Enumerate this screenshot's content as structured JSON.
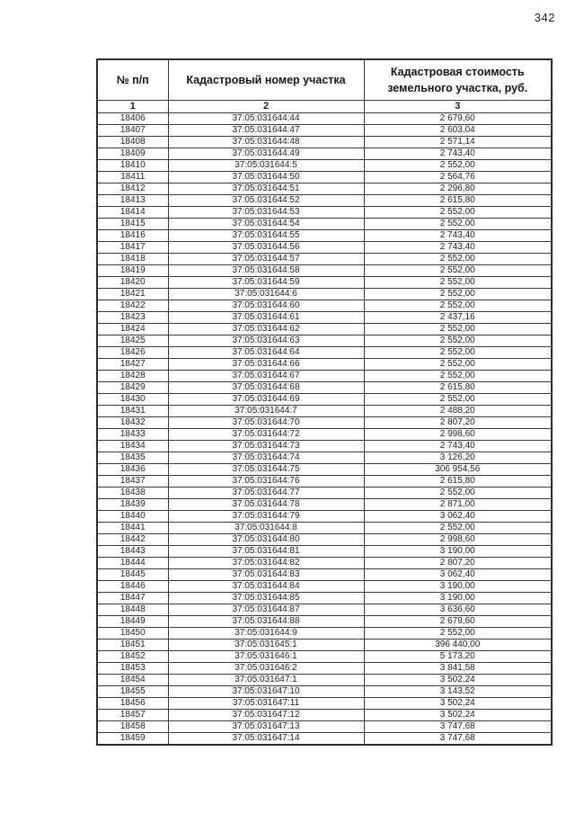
{
  "page": {
    "number": "342"
  },
  "table": {
    "headers": {
      "col1": "№ п/п",
      "col2": "Кадастровый номер участка",
      "col3": "Кадастровая стоимость земельного участка, руб."
    },
    "column_numbers": [
      "1",
      "2",
      "3"
    ],
    "rows": [
      {
        "num": "18406",
        "cadastral": "37:05:031644:44",
        "value": "2 679,60"
      },
      {
        "num": "18407",
        "cadastral": "37:05:031644:47",
        "value": "2 603,04"
      },
      {
        "num": "18408",
        "cadastral": "37:05:031644:48",
        "value": "2 571,14"
      },
      {
        "num": "18409",
        "cadastral": "37:05:031644:49",
        "value": "2 743,40"
      },
      {
        "num": "18410",
        "cadastral": "37:05:031644:5",
        "value": "2 552,00"
      },
      {
        "num": "18411",
        "cadastral": "37:05:031644:50",
        "value": "2 564,76"
      },
      {
        "num": "18412",
        "cadastral": "37:05:031644:51",
        "value": "2 296,80"
      },
      {
        "num": "18413",
        "cadastral": "37:05:031644:52",
        "value": "2 615,80"
      },
      {
        "num": "18414",
        "cadastral": "37:05:031644:53",
        "value": "2 552,00"
      },
      {
        "num": "18415",
        "cadastral": "37:05:031644:54",
        "value": "2 552,00"
      },
      {
        "num": "18416",
        "cadastral": "37:05:031644:55",
        "value": "2 743,40"
      },
      {
        "num": "18417",
        "cadastral": "37:05:031644:56",
        "value": "2 743,40"
      },
      {
        "num": "18418",
        "cadastral": "37:05:031644:57",
        "value": "2 552,00"
      },
      {
        "num": "18419",
        "cadastral": "37:05:031644:58",
        "value": "2 552,00"
      },
      {
        "num": "18420",
        "cadastral": "37:05:031644:59",
        "value": "2 552,00"
      },
      {
        "num": "18421",
        "cadastral": "37:05:031644:6",
        "value": "2 552,00"
      },
      {
        "num": "18422",
        "cadastral": "37:05:031644:60",
        "value": "2 552,00"
      },
      {
        "num": "18423",
        "cadastral": "37:05:031644:61",
        "value": "2 437,16"
      },
      {
        "num": "18424",
        "cadastral": "37:05:031644:62",
        "value": "2 552,00"
      },
      {
        "num": "18425",
        "cadastral": "37:05:031644:63",
        "value": "2 552,00"
      },
      {
        "num": "18426",
        "cadastral": "37:05:031644:64",
        "value": "2 552,00"
      },
      {
        "num": "18427",
        "cadastral": "37:05:031644:66",
        "value": "2 552,00"
      },
      {
        "num": "18428",
        "cadastral": "37:05:031644:67",
        "value": "2 552,00"
      },
      {
        "num": "18429",
        "cadastral": "37:05:031644:68",
        "value": "2 615,80"
      },
      {
        "num": "18430",
        "cadastral": "37:05:031644:69",
        "value": "2 552,00"
      },
      {
        "num": "18431",
        "cadastral": "37:05:031644:7",
        "value": "2 488,20"
      },
      {
        "num": "18432",
        "cadastral": "37:05:031644:70",
        "value": "2 807,20"
      },
      {
        "num": "18433",
        "cadastral": "37:05:031644:72",
        "value": "2 998,60"
      },
      {
        "num": "18434",
        "cadastral": "37:05:031644:73",
        "value": "2 743,40"
      },
      {
        "num": "18435",
        "cadastral": "37:05:031644:74",
        "value": "3 126,20"
      },
      {
        "num": "18436",
        "cadastral": "37:05:031644:75",
        "value": "306 954,56"
      },
      {
        "num": "18437",
        "cadastral": "37:05:031644:76",
        "value": "2 615,80"
      },
      {
        "num": "18438",
        "cadastral": "37:05:031644:77",
        "value": "2 552,00"
      },
      {
        "num": "18439",
        "cadastral": "37:05:031644:78",
        "value": "2 871,00"
      },
      {
        "num": "18440",
        "cadastral": "37:05:031644:79",
        "value": "3 062,40"
      },
      {
        "num": "18441",
        "cadastral": "37:05:031644:8",
        "value": "2 552,00"
      },
      {
        "num": "18442",
        "cadastral": "37:05:031644:80",
        "value": "2 998,60"
      },
      {
        "num": "18443",
        "cadastral": "37:05:031644:81",
        "value": "3 190,00"
      },
      {
        "num": "18444",
        "cadastral": "37:05:031644:82",
        "value": "2 807,20"
      },
      {
        "num": "18445",
        "cadastral": "37:05:031644:83",
        "value": "3 062,40"
      },
      {
        "num": "18446",
        "cadastral": "37:05:031644:84",
        "value": "3 190,00"
      },
      {
        "num": "18447",
        "cadastral": "37:05:031644:85",
        "value": "3 190,00"
      },
      {
        "num": "18448",
        "cadastral": "37:05:031644:87",
        "value": "3 636,60"
      },
      {
        "num": "18449",
        "cadastral": "37:05:031644:88",
        "value": "2 679,60"
      },
      {
        "num": "18450",
        "cadastral": "37:05:031644:9",
        "value": "2 552,00"
      },
      {
        "num": "18451",
        "cadastral": "37:05:031645:1",
        "value": "396 440,00"
      },
      {
        "num": "18452",
        "cadastral": "37:05:031646:1",
        "value": "5 173,20"
      },
      {
        "num": "18453",
        "cadastral": "37:05:031646:2",
        "value": "3 841,58"
      },
      {
        "num": "18454",
        "cadastral": "37:05:031647:1",
        "value": "3 502,24"
      },
      {
        "num": "18455",
        "cadastral": "37:05:031647:10",
        "value": "3 143,52"
      },
      {
        "num": "18456",
        "cadastral": "37:05:031647:11",
        "value": "3 502,24"
      },
      {
        "num": "18457",
        "cadastral": "37:05:031647:12",
        "value": "3 502,24"
      },
      {
        "num": "18458",
        "cadastral": "37:05:031647:13",
        "value": "3 747,68"
      },
      {
        "num": "18459",
        "cadastral": "37:05:031647:14",
        "value": "3 747,68"
      }
    ]
  }
}
